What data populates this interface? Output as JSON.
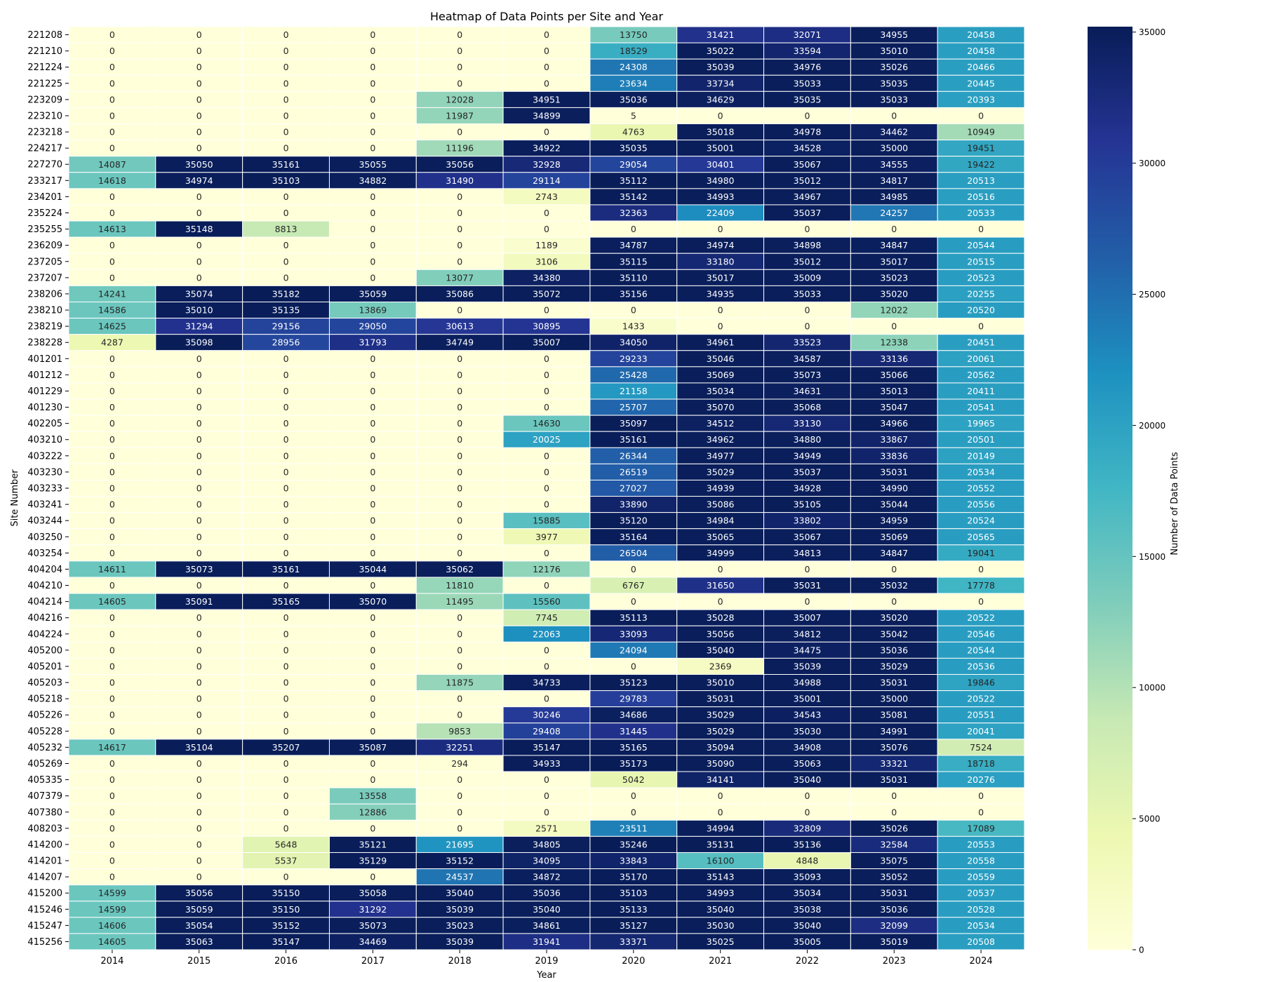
{
  "chart_data": {
    "type": "heatmap",
    "title": "Heatmap of Data Points per Site and Year",
    "xlabel": "Year",
    "ylabel": "Site Number",
    "colorbar_label": "Number of Data Points",
    "colormap": [
      "#ffffd9",
      "#edf8b1",
      "#c7e9b4",
      "#7fcdbb",
      "#41b6c4",
      "#1d91c0",
      "#225ea8",
      "#253494",
      "#081d58"
    ],
    "vmin": 0,
    "vmax": 35207,
    "colorbar_ticks": [
      0,
      5000,
      10000,
      15000,
      20000,
      25000,
      30000,
      35000
    ],
    "x": [
      "2014",
      "2015",
      "2016",
      "2017",
      "2018",
      "2019",
      "2020",
      "2021",
      "2022",
      "2023",
      "2024"
    ],
    "y": [
      "221208",
      "221210",
      "221224",
      "221225",
      "223209",
      "223210",
      "223218",
      "224217",
      "227270",
      "233217",
      "234201",
      "235224",
      "235255",
      "236209",
      "237205",
      "237207",
      "238206",
      "238210",
      "238219",
      "238228",
      "401201",
      "401212",
      "401229",
      "401230",
      "402205",
      "403210",
      "403222",
      "403230",
      "403233",
      "403241",
      "403244",
      "403250",
      "403254",
      "404204",
      "404210",
      "404214",
      "404216",
      "404224",
      "405200",
      "405201",
      "405203",
      "405218",
      "405226",
      "405228",
      "405232",
      "405269",
      "405335",
      "407379",
      "407380",
      "408203",
      "414200",
      "414201",
      "414207",
      "415200",
      "415246",
      "415247",
      "415256"
    ],
    "values": [
      [
        0,
        0,
        0,
        0,
        0,
        0,
        13750,
        31421,
        32071,
        34955,
        20458
      ],
      [
        0,
        0,
        0,
        0,
        0,
        0,
        18529,
        35022,
        33594,
        35010,
        20458
      ],
      [
        0,
        0,
        0,
        0,
        0,
        0,
        24308,
        35039,
        34976,
        35026,
        20466
      ],
      [
        0,
        0,
        0,
        0,
        0,
        0,
        23634,
        33734,
        35033,
        35035,
        20445
      ],
      [
        0,
        0,
        0,
        0,
        12028,
        34951,
        35036,
        34629,
        35035,
        35033,
        20393
      ],
      [
        0,
        0,
        0,
        0,
        11987,
        34899,
        5,
        0,
        0,
        0,
        0
      ],
      [
        0,
        0,
        0,
        0,
        0,
        0,
        4763,
        35018,
        34978,
        34462,
        10949
      ],
      [
        0,
        0,
        0,
        0,
        11196,
        34922,
        35035,
        35001,
        34528,
        35000,
        19451
      ],
      [
        14087,
        35050,
        35161,
        35055,
        35056,
        32928,
        29054,
        30401,
        35067,
        34555,
        19422
      ],
      [
        14618,
        34974,
        35103,
        34882,
        31490,
        29114,
        35112,
        34980,
        35012,
        34817,
        20513
      ],
      [
        0,
        0,
        0,
        0,
        0,
        2743,
        35142,
        34993,
        34967,
        34985,
        20516
      ],
      [
        0,
        0,
        0,
        0,
        0,
        0,
        32363,
        22409,
        35037,
        24257,
        20533
      ],
      [
        14613,
        35148,
        8813,
        0,
        0,
        0,
        0,
        0,
        0,
        0,
        0
      ],
      [
        0,
        0,
        0,
        0,
        0,
        1189,
        34787,
        34974,
        34898,
        34847,
        20544
      ],
      [
        0,
        0,
        0,
        0,
        0,
        3106,
        35115,
        33180,
        35012,
        35017,
        20515
      ],
      [
        0,
        0,
        0,
        0,
        13077,
        34380,
        35110,
        35017,
        35009,
        35023,
        20523
      ],
      [
        14241,
        35074,
        35182,
        35059,
        35086,
        35072,
        35156,
        34935,
        35033,
        35020,
        20255
      ],
      [
        14586,
        35010,
        35135,
        13869,
        0,
        0,
        0,
        0,
        0,
        12022,
        20520
      ],
      [
        14625,
        31294,
        29156,
        29050,
        30613,
        30895,
        1433,
        0,
        0,
        0,
        0
      ],
      [
        4287,
        35098,
        28956,
        31793,
        34749,
        35007,
        34050,
        34961,
        33523,
        12338,
        20451
      ],
      [
        0,
        0,
        0,
        0,
        0,
        0,
        29233,
        35046,
        34587,
        33136,
        20061
      ],
      [
        0,
        0,
        0,
        0,
        0,
        0,
        25428,
        35069,
        35073,
        35066,
        20562
      ],
      [
        0,
        0,
        0,
        0,
        0,
        0,
        21158,
        35034,
        34631,
        35013,
        20411
      ],
      [
        0,
        0,
        0,
        0,
        0,
        0,
        25707,
        35070,
        35068,
        35047,
        20541
      ],
      [
        0,
        0,
        0,
        0,
        0,
        14630,
        35097,
        34512,
        33130,
        34966,
        19965
      ],
      [
        0,
        0,
        0,
        0,
        0,
        20025,
        35161,
        34962,
        34880,
        33867,
        20501
      ],
      [
        0,
        0,
        0,
        0,
        0,
        0,
        26344,
        34977,
        34949,
        33836,
        20149
      ],
      [
        0,
        0,
        0,
        0,
        0,
        0,
        26519,
        35029,
        35037,
        35031,
        20534
      ],
      [
        0,
        0,
        0,
        0,
        0,
        0,
        27027,
        34939,
        34928,
        34990,
        20552
      ],
      [
        0,
        0,
        0,
        0,
        0,
        0,
        33890,
        35086,
        35105,
        35044,
        20556
      ],
      [
        0,
        0,
        0,
        0,
        0,
        15885,
        35120,
        34984,
        33802,
        34959,
        20524
      ],
      [
        0,
        0,
        0,
        0,
        0,
        3977,
        35164,
        35065,
        35067,
        35069,
        20565
      ],
      [
        0,
        0,
        0,
        0,
        0,
        0,
        26504,
        34999,
        34813,
        34847,
        19041
      ],
      [
        14611,
        35073,
        35161,
        35044,
        35062,
        12176,
        0,
        0,
        0,
        0,
        0
      ],
      [
        0,
        0,
        0,
        0,
        11810,
        0,
        6767,
        31650,
        35031,
        35032,
        17778
      ],
      [
        14605,
        35091,
        35165,
        35070,
        11495,
        15560,
        0,
        0,
        0,
        0,
        0
      ],
      [
        0,
        0,
        0,
        0,
        0,
        7745,
        35113,
        35028,
        35007,
        35020,
        20522
      ],
      [
        0,
        0,
        0,
        0,
        0,
        22063,
        33093,
        35056,
        34812,
        35042,
        20546
      ],
      [
        0,
        0,
        0,
        0,
        0,
        0,
        24094,
        35040,
        34475,
        35036,
        20544
      ],
      [
        0,
        0,
        0,
        0,
        0,
        0,
        0,
        2369,
        35039,
        35029,
        20536
      ],
      [
        0,
        0,
        0,
        0,
        11875,
        34733,
        35123,
        35010,
        34988,
        35031,
        19846
      ],
      [
        0,
        0,
        0,
        0,
        0,
        0,
        29783,
        35031,
        35001,
        35000,
        20522
      ],
      [
        0,
        0,
        0,
        0,
        0,
        30246,
        34686,
        35029,
        34543,
        35081,
        20551
      ],
      [
        0,
        0,
        0,
        0,
        9853,
        29408,
        31445,
        35029,
        35030,
        34991,
        20041
      ],
      [
        14617,
        35104,
        35207,
        35087,
        32251,
        35147,
        35165,
        35094,
        34908,
        35076,
        7524
      ],
      [
        0,
        0,
        0,
        0,
        294,
        34933,
        35173,
        35090,
        35063,
        33321,
        18718
      ],
      [
        0,
        0,
        0,
        0,
        0,
        0,
        5042,
        34141,
        35040,
        35031,
        20276
      ],
      [
        0,
        0,
        0,
        13558,
        0,
        0,
        0,
        0,
        0,
        0,
        0
      ],
      [
        0,
        0,
        0,
        12886,
        0,
        0,
        0,
        0,
        0,
        0,
        0
      ],
      [
        0,
        0,
        0,
        0,
        0,
        2571,
        23511,
        34994,
        32809,
        35026,
        17089
      ],
      [
        0,
        0,
        5648,
        35121,
        21695,
        34805,
        35246,
        35131,
        35136,
        32584,
        20553
      ],
      [
        0,
        0,
        5537,
        35129,
        35152,
        34095,
        33843,
        16100,
        4848,
        35075,
        20558
      ],
      [
        0,
        0,
        0,
        0,
        24537,
        34872,
        35170,
        35143,
        35093,
        35052,
        20559
      ],
      [
        14599,
        35056,
        35150,
        35058,
        35040,
        35036,
        35103,
        34993,
        35034,
        35031,
        20537
      ],
      [
        14599,
        35059,
        35150,
        31292,
        35039,
        35040,
        35133,
        35040,
        35038,
        35036,
        20528
      ],
      [
        14606,
        35054,
        35152,
        35073,
        35023,
        34861,
        35127,
        35030,
        35040,
        32099,
        20534
      ],
      [
        14605,
        35063,
        35147,
        34469,
        35039,
        31941,
        33371,
        35025,
        35005,
        35019,
        20508
      ]
    ]
  }
}
